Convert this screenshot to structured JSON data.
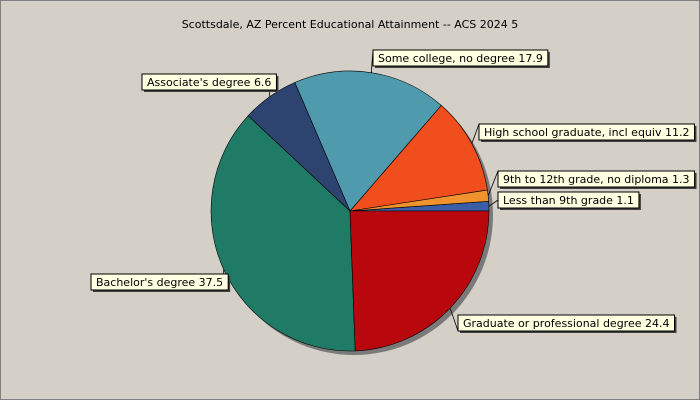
{
  "chart_data": {
    "type": "pie",
    "title": "Scottsdale, AZ Percent Educational Attainment -- ACS 2024 5",
    "slices": [
      {
        "label": "Less than 9th grade",
        "value": 1.1,
        "color": "#3a5fa8"
      },
      {
        "label": "9th to 12th grade, no diploma",
        "value": 1.3,
        "color": "#f0922e"
      },
      {
        "label": "High school graduate, incl equiv",
        "value": 11.2,
        "color": "#f04e1c"
      },
      {
        "label": "Some college, no degree",
        "value": 17.9,
        "color": "#4f9aad"
      },
      {
        "label": "Associate's degree",
        "value": 6.6,
        "color": "#2e4470"
      },
      {
        "label": "Bachelor's degree",
        "value": 37.5,
        "color": "#1f7a66"
      },
      {
        "label": "Graduate or professional degree",
        "value": 24.4,
        "color": "#b8080e"
      }
    ],
    "start_angle_deg": 0,
    "direction": "counterclockwise",
    "legend": "none"
  }
}
